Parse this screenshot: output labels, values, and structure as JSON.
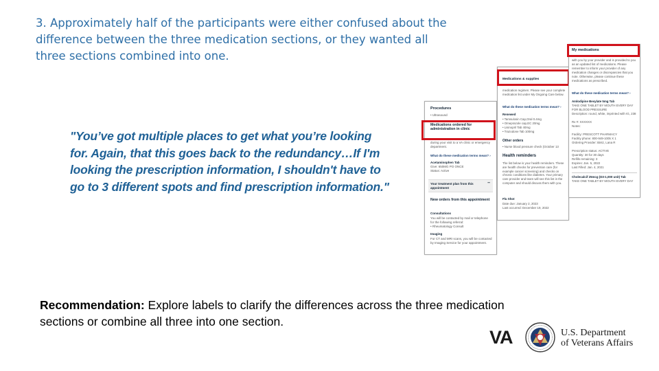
{
  "slide": {
    "heading": "3. Approximately half of the participants were either confused about the difference between the three medication sections, or they wanted all three sections combined into one.",
    "quote": "\"You’ve got multiple places to get what you’re looking for. Again, that this goes back to the redundancy…If I'm looking the prescription information, I shouldn't have to go to 3 different spots and find prescription information.\"",
    "recommendation_label": "Recommendation:",
    "recommendation_text": " Explore labels to clarify the differences across the three medication sections or combine all three into one section."
  },
  "card1": {
    "procedures": "Procedures",
    "ultrasound": "• Ultrasound",
    "meds_header": "Medications ordered for administration in clinic",
    "meds_desc": "during your visit to a VA clinic or emergency department.",
    "terms_link": "What do these medication terms mean? ›",
    "drug_name": "Acetaminophen Tab",
    "drug_give": "Give: 650MG PO ONCE",
    "drug_status": "Status: Active",
    "plan_label": "Your treatment plan from this appointment",
    "plan_toggle": "–",
    "new_orders": "New orders from this appointment",
    "consultations": "Consultations",
    "consult_desc": "You will be contacted by mail or telephone for the following referral:",
    "consult_item": "• Rheumatology Consult",
    "imaging": "Imaging",
    "imaging_desc": "For CT and MRI scans, you will be contacted by Imaging Service for your appointment."
  },
  "card2": {
    "meds_header": "Medications & supplies",
    "meds_desc": "medication regimen. Please see your complete medication list under My Ongoing Care below.",
    "terms_link": "What do these medication terms mean? ›",
    "renewed": "Renewed",
    "renewed_items": [
      "• Tamsulosin Cap,Oral 0.4mg",
      "• Omeprazole cap,EC 20mg",
      "• Lisinopril Tab 40mg",
      "• Trazodone Tab 100mg"
    ],
    "other_orders": "Other orders",
    "other_item": "• Nurse blood pressure check (October 13",
    "health_header": "Health reminders",
    "health_desc": "The list below is your health reminders. These are health checks for prevention care (for example cancer screening) and checks on chronic conditions like diabetes. Your primary care provider and team will see this list in the computer and should discuss them with you.",
    "flu": "Flu Shot",
    "flu_due": "Date due: January 2, 2023",
    "flu_last": "Last occurred: December 19, 2022"
  },
  "card3": {
    "meds_header": "My medications",
    "meds_desc": "with you by your provider and is provided to you as an updated list of medications. Please remember to inform your provider of any medication changes or discrepancies that you note. Otherwise, please continue these medications as prescribed.",
    "terms_link": "What do these medication terms mean? ›",
    "drug1_name": "Amlodipine Besylate 5mg Tab",
    "drug1_sig": "TAKE ONE TABLET BY MOUTH EVERY DAY FOR BLOOD PRESSURE",
    "drug1_desc": "Description: round, white, imprinted with IG, 238",
    "drug1_rx": "Rx #: XXXXXX",
    "drug1_notes": "Notes:",
    "drug1_facility": "Facility: PRESCOTT PHARMACY",
    "drug1_phone": "Facility phone: 800-949-1005 X 1",
    "drug1_provider": "Ordering Provider: Bintz, Lana R",
    "drug1_status": "Prescription status: ACTIVE",
    "drug1_qty": "Quantity: 30 for 30 days",
    "drug1_refills": "Refills remaining: 3",
    "drug1_expires": "Expires: Jan. 5, 2022",
    "drug1_filled": "Last Filled: Jan. 4, 2021",
    "drug2_name": "Cholecalcif 25mcg (D3-1,000 unit) Tab",
    "drug2_sig": "TAKE ONE TABLET BY MOUTH EVERY DAY"
  },
  "branding": {
    "va_letters": "VA",
    "dept_line1": "U.S. Department",
    "dept_line2": "of Veterans Affairs",
    "seal_icon": "va-seal-icon"
  }
}
